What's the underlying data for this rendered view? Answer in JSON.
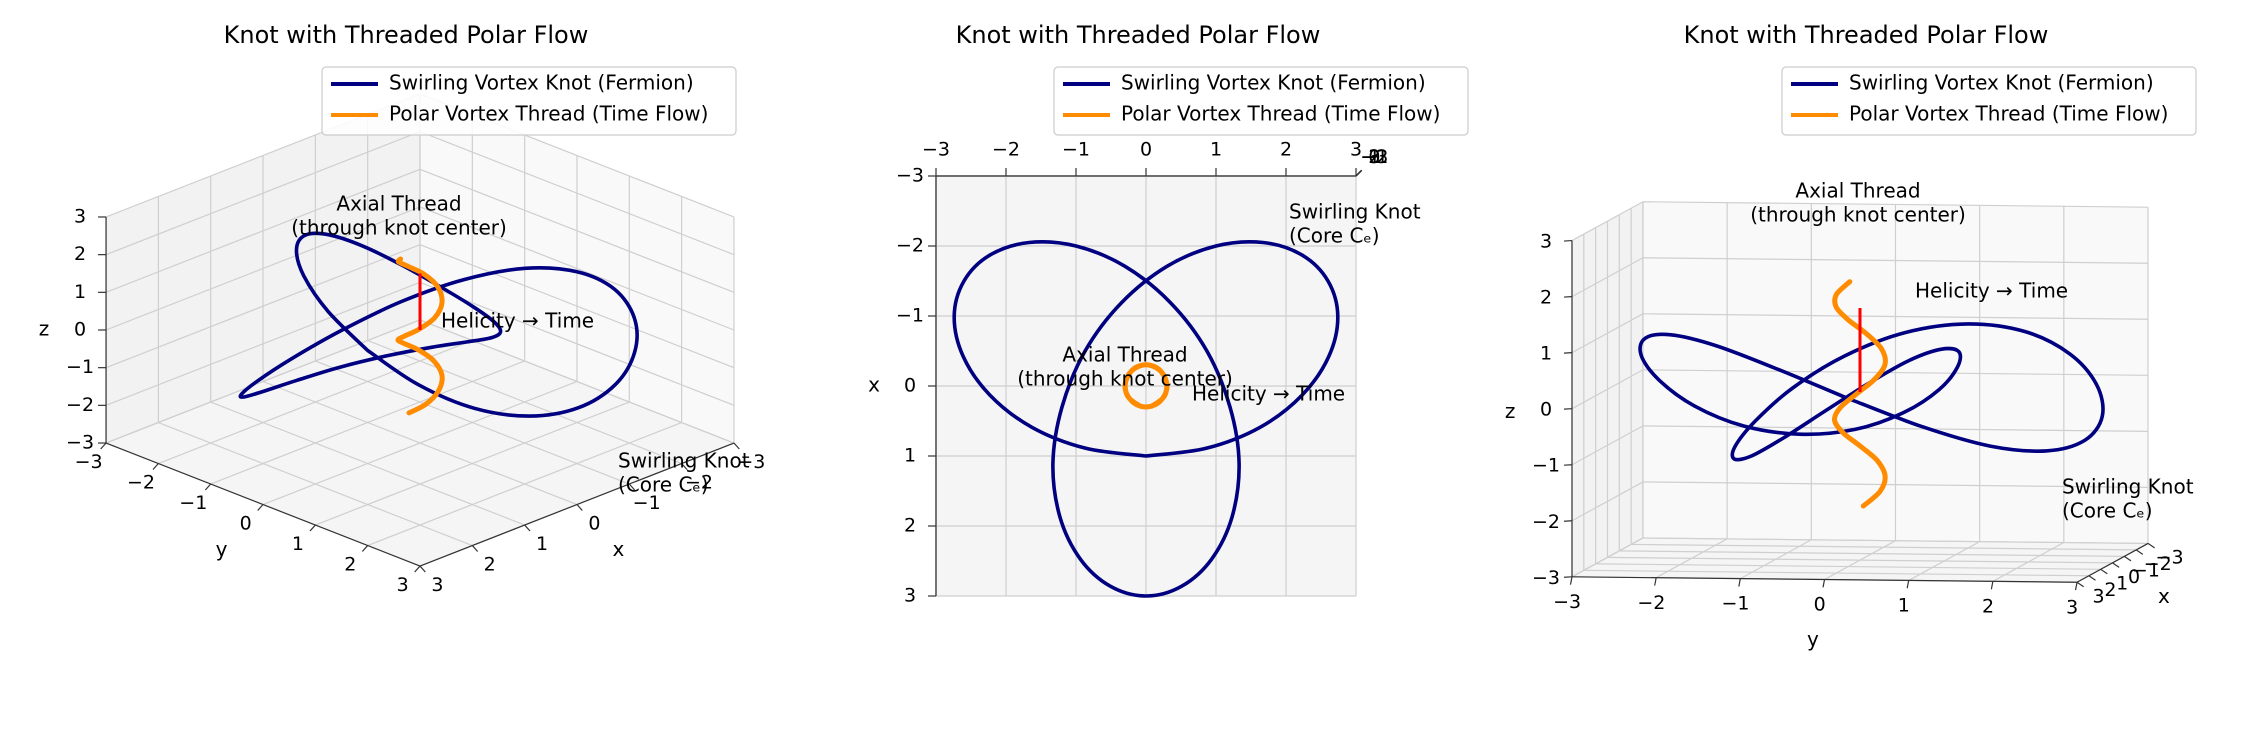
{
  "chart_data": [
    {
      "type": "line3d",
      "title": "Knot with Threaded Polar Flow",
      "xlabel": "x",
      "ylabel": "y",
      "zlabel": "z",
      "xlim": [
        -3,
        3
      ],
      "ylim": [
        -3,
        3
      ],
      "zlim": [
        -3,
        3
      ],
      "xticks": [
        {
          "value": -3,
          "label": "−3"
        },
        {
          "value": -2,
          "label": "−2"
        },
        {
          "value": -1,
          "label": "−1"
        },
        0,
        1,
        2,
        3
      ],
      "yticks": [
        {
          "value": -3,
          "label": "−3"
        },
        {
          "value": -2,
          "label": "−2"
        },
        {
          "value": -1,
          "label": "−1"
        },
        0,
        1,
        2,
        3
      ],
      "zticks": [
        {
          "value": -3,
          "label": "−3"
        },
        {
          "value": -2,
          "label": "−2"
        },
        {
          "value": -1,
          "label": "−1"
        },
        0,
        1,
        2,
        3
      ],
      "grid": true,
      "legend": "upper right",
      "series": [
        {
          "name": "Swirling Vortex Knot (Fermion)",
          "color": "#000080",
          "x": [
            1,
            0.89,
            0.59,
            0.13,
            -0.42,
            -0.99,
            -1.5,
            -1.87,
            -2.05,
            -2,
            -1.71,
            -1.19,
            -0.5,
            0.3,
            1.11,
            1.87,
            2.47,
            2.86,
            3,
            2.86,
            2.47,
            1.87,
            1.11,
            0.3,
            -0.5,
            -1.19,
            -1.71,
            -2,
            -2.05,
            -1.87,
            -1.5,
            -0.99,
            -0.42,
            0.13,
            0.59,
            0.89,
            1
          ],
          "y": [
            0,
            0.86,
            1.63,
            2.23,
            2.61,
            2.74,
            2.6,
            2.23,
            1.67,
            1,
            0.3,
            -0.35,
            -0.87,
            -1.2,
            -1.33,
            -1.23,
            -0.94,
            -0.51,
            0,
            0.51,
            0.94,
            1.23,
            1.33,
            1.2,
            0.87,
            0.35,
            -0.3,
            -1,
            -1.67,
            -2.23,
            -2.6,
            -2.74,
            -2.61,
            -2.23,
            -1.63,
            -0.86,
            0
          ],
          "z": [
            0,
            -0.5,
            -0.87,
            -1,
            -0.87,
            -0.5,
            0,
            0.5,
            0.87,
            1,
            0.87,
            0.5,
            0,
            -0.5,
            -0.87,
            -1,
            -0.87,
            -0.5,
            0,
            0.5,
            0.87,
            1,
            0.87,
            0.5,
            0,
            -0.5,
            -0.87,
            -1,
            -0.87,
            -0.5,
            0,
            0.5,
            0.87,
            1,
            0.87,
            0.5,
            0
          ]
        },
        {
          "name": "Polar Vortex Thread (Time Flow)",
          "color": "#ff8c00",
          "x": [
            0.29,
            0.15,
            -0.06,
            -0.25,
            -0.3,
            -0.19,
            0.02,
            0.22,
            0.3,
            0.22,
            0.02,
            -0.19,
            -0.3,
            -0.25,
            -0.06,
            0.15,
            0.29
          ],
          "y": [
            0.08,
            0.26,
            0.29,
            0.17,
            -0.04,
            -0.23,
            -0.3,
            -0.2,
            0,
            0.2,
            0.3,
            0.23,
            0.04,
            -0.17,
            -0.29,
            -0.26,
            -0.08
          ],
          "z": [
            -2,
            -1.75,
            -1.5,
            -1.25,
            -1,
            -0.75,
            -0.5,
            -0.25,
            0,
            0.25,
            0.5,
            0.75,
            1,
            1.25,
            1.5,
            1.75,
            2
          ]
        }
      ],
      "annotations": [
        {
          "lines": [
            "Axial Thread",
            "(through knot center)"
          ]
        },
        {
          "lines": [
            "Swirling Knot",
            "(Core Cₑ)"
          ]
        },
        {
          "lines": [
            "Helicity → Time"
          ],
          "color": "red",
          "x": [
            0,
            0
          ],
          "y": [
            0,
            0
          ],
          "z": [
            0,
            1.5
          ]
        }
      ]
    },
    {
      "type": "line3d",
      "title": "Knot with Threaded Polar Flow",
      "xlabel": "x",
      "xlim": [
        -3,
        3
      ],
      "ylim": [
        -3,
        3
      ],
      "zlim": [
        -3,
        3
      ],
      "xticks": [
        {
          "value": -3,
          "label": "−3"
        },
        {
          "value": -2,
          "label": "−2"
        },
        {
          "value": -1,
          "label": "−1"
        },
        0,
        1,
        2,
        3
      ],
      "yticks": [
        {
          "value": -3,
          "label": "−3"
        },
        {
          "value": -2,
          "label": "−2"
        },
        {
          "value": -1,
          "label": "−1"
        },
        0,
        1,
        2,
        3
      ],
      "zticks": [
        {
          "value": -3,
          "label": "−3"
        },
        {
          "value": -2,
          "label": "−2"
        },
        {
          "value": -1,
          "label": "−1"
        },
        0,
        1,
        2,
        3
      ],
      "grid": true,
      "legend": "upper right",
      "series": [
        {
          "name": "Swirling Vortex Knot (Fermion)",
          "color": "#000080",
          "x": [
            1,
            0.89,
            0.59,
            0.13,
            -0.42,
            -0.99,
            -1.5,
            -1.87,
            -2.05,
            -2,
            -1.71,
            -1.19,
            -0.5,
            0.3,
            1.11,
            1.87,
            2.47,
            2.86,
            3,
            2.86,
            2.47,
            1.87,
            1.11,
            0.3,
            -0.5,
            -1.19,
            -1.71,
            -2,
            -2.05,
            -1.87,
            -1.5,
            -0.99,
            -0.42,
            0.13,
            0.59,
            0.89,
            1
          ],
          "y": [
            0,
            0.86,
            1.63,
            2.23,
            2.61,
            2.74,
            2.6,
            2.23,
            1.67,
            1,
            0.3,
            -0.35,
            -0.87,
            -1.2,
            -1.33,
            -1.23,
            -0.94,
            -0.51,
            0,
            0.51,
            0.94,
            1.23,
            1.33,
            1.2,
            0.87,
            0.35,
            -0.3,
            -1,
            -1.67,
            -2.23,
            -2.6,
            -2.74,
            -2.61,
            -2.23,
            -1.63,
            -0.86,
            0
          ],
          "z": [
            0,
            -0.5,
            -0.87,
            -1,
            -0.87,
            -0.5,
            0,
            0.5,
            0.87,
            1,
            0.87,
            0.5,
            0,
            -0.5,
            -0.87,
            -1,
            -0.87,
            -0.5,
            0,
            0.5,
            0.87,
            1,
            0.87,
            0.5,
            0,
            -0.5,
            -0.87,
            -1,
            -0.87,
            -0.5,
            0,
            0.5,
            0.87,
            1,
            0.87,
            0.5,
            0
          ]
        },
        {
          "name": "Polar Vortex Thread (Time Flow)",
          "color": "#ff8c00",
          "x": [
            0.29,
            0.15,
            -0.06,
            -0.25,
            -0.3,
            -0.19,
            0.02,
            0.22,
            0.3,
            0.22,
            0.02,
            -0.19,
            -0.3,
            -0.25,
            -0.06,
            0.15,
            0.29
          ],
          "y": [
            0.08,
            0.26,
            0.29,
            0.17,
            -0.04,
            -0.23,
            -0.3,
            -0.2,
            0,
            0.2,
            0.3,
            0.23,
            0.04,
            -0.17,
            -0.29,
            -0.26,
            -0.08
          ],
          "z": [
            -2,
            -1.75,
            -1.5,
            -1.25,
            -1,
            -0.75,
            -0.5,
            -0.25,
            0,
            0.25,
            0.5,
            0.75,
            1,
            1.25,
            1.5,
            1.75,
            2
          ]
        }
      ],
      "annotations": [
        {
          "lines": [
            "Axial Thread",
            "(through knot center)"
          ]
        },
        {
          "lines": [
            "Swirling Knot",
            "(Core Cₑ)"
          ]
        },
        {
          "lines": [
            "Helicity → Time"
          ],
          "color": "red",
          "x": [
            0,
            0
          ],
          "y": [
            0,
            0
          ],
          "z": [
            0,
            1.5
          ]
        }
      ]
    },
    {
      "type": "line3d",
      "title": "Knot with Threaded Polar Flow",
      "xlabel": "x",
      "ylabel": "y",
      "zlabel": "z",
      "xlim": [
        -3,
        3
      ],
      "ylim": [
        -3,
        3
      ],
      "zlim": [
        -3,
        3
      ],
      "xticks": [
        {
          "value": -3,
          "label": "−3"
        },
        {
          "value": -2,
          "label": "−2"
        },
        {
          "value": -1,
          "label": "−1"
        },
        0,
        1,
        2,
        3
      ],
      "yticks": [
        {
          "value": -3,
          "label": "−3"
        },
        {
          "value": -2,
          "label": "−2"
        },
        {
          "value": -1,
          "label": "−1"
        },
        0,
        1,
        2,
        3
      ],
      "zticks": [
        {
          "value": -3,
          "label": "−3"
        },
        {
          "value": -2,
          "label": "−2"
        },
        {
          "value": -1,
          "label": "−1"
        },
        0,
        1,
        2,
        3
      ],
      "grid": true,
      "legend": "upper right",
      "series": [
        {
          "name": "Swirling Vortex Knot (Fermion)",
          "color": "#000080",
          "x": [
            1,
            0.89,
            0.59,
            0.13,
            -0.42,
            -0.99,
            -1.5,
            -1.87,
            -2.05,
            -2,
            -1.71,
            -1.19,
            -0.5,
            0.3,
            1.11,
            1.87,
            2.47,
            2.86,
            3,
            2.86,
            2.47,
            1.87,
            1.11,
            0.3,
            -0.5,
            -1.19,
            -1.71,
            -2,
            -2.05,
            -1.87,
            -1.5,
            -0.99,
            -0.42,
            0.13,
            0.59,
            0.89,
            1
          ],
          "y": [
            0,
            0.86,
            1.63,
            2.23,
            2.61,
            2.74,
            2.6,
            2.23,
            1.67,
            1,
            0.3,
            -0.35,
            -0.87,
            -1.2,
            -1.33,
            -1.23,
            -0.94,
            -0.51,
            0,
            0.51,
            0.94,
            1.23,
            1.33,
            1.2,
            0.87,
            0.35,
            -0.3,
            -1,
            -1.67,
            -2.23,
            -2.6,
            -2.74,
            -2.61,
            -2.23,
            -1.63,
            -0.86,
            0
          ],
          "z": [
            0,
            -0.5,
            -0.87,
            -1,
            -0.87,
            -0.5,
            0,
            0.5,
            0.87,
            1,
            0.87,
            0.5,
            0,
            -0.5,
            -0.87,
            -1,
            -0.87,
            -0.5,
            0,
            0.5,
            0.87,
            1,
            0.87,
            0.5,
            0,
            -0.5,
            -0.87,
            -1,
            -0.87,
            -0.5,
            0,
            0.5,
            0.87,
            1,
            0.87,
            0.5,
            0
          ]
        },
        {
          "name": "Polar Vortex Thread (Time Flow)",
          "color": "#ff8c00",
          "x": [
            0.29,
            0.15,
            -0.06,
            -0.25,
            -0.3,
            -0.19,
            0.02,
            0.22,
            0.3,
            0.22,
            0.02,
            -0.19,
            -0.3,
            -0.25,
            -0.06,
            0.15,
            0.29
          ],
          "y": [
            0.08,
            0.26,
            0.29,
            0.17,
            -0.04,
            -0.23,
            -0.3,
            -0.2,
            0,
            0.2,
            0.3,
            0.23,
            0.04,
            -0.17,
            -0.29,
            -0.26,
            -0.08
          ],
          "z": [
            -2,
            -1.75,
            -1.5,
            -1.25,
            -1,
            -0.75,
            -0.5,
            -0.25,
            0,
            0.25,
            0.5,
            0.75,
            1,
            1.25,
            1.5,
            1.75,
            2
          ]
        }
      ],
      "annotations": [
        {
          "lines": [
            "Axial Thread",
            "(through knot center)"
          ]
        },
        {
          "lines": [
            "Swirling Knot",
            "(Core Cₑ)"
          ]
        },
        {
          "lines": [
            "Helicity → Time"
          ],
          "color": "red",
          "x": [
            0,
            0
          ],
          "y": [
            0,
            0
          ],
          "z": [
            0,
            1.5
          ]
        }
      ]
    }
  ]
}
